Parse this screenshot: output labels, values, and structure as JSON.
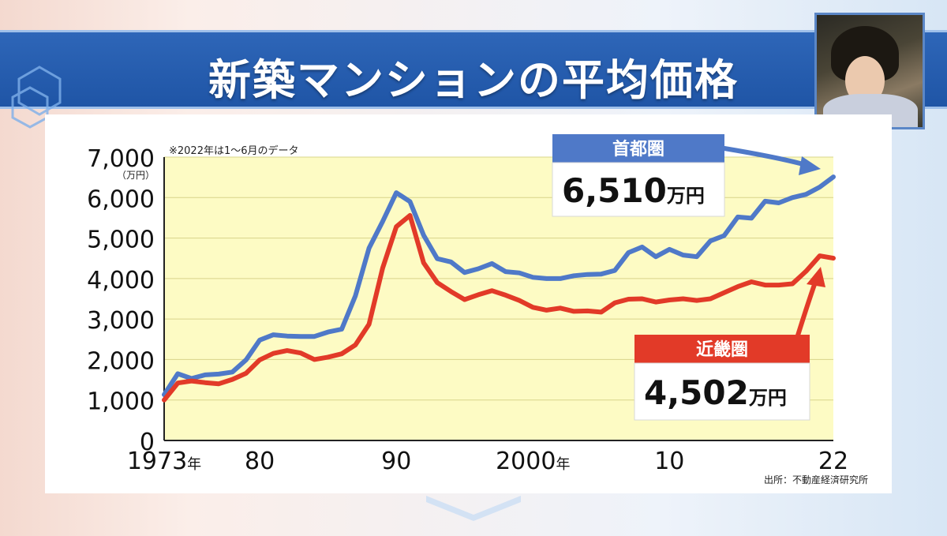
{
  "header": {
    "title": "新築マンションの平均価格"
  },
  "chart_data": {
    "type": "line",
    "note": "※2022年は1～6月のデータ",
    "unit_label": "（万円）",
    "source": "出所：不動産経済研究所",
    "ylim": [
      0,
      7000
    ],
    "xlim": [
      1973,
      2022
    ],
    "y_ticks": [
      {
        "v": 0,
        "label": "0"
      },
      {
        "v": 1000,
        "label": "1,000"
      },
      {
        "v": 2000,
        "label": "2,000"
      },
      {
        "v": 3000,
        "label": "3,000"
      },
      {
        "v": 4000,
        "label": "4,000"
      },
      {
        "v": 5000,
        "label": "5,000"
      },
      {
        "v": 6000,
        "label": "6,000"
      },
      {
        "v": 7000,
        "label": "7,000"
      }
    ],
    "x_ticks": [
      {
        "v": 1973,
        "label": "1973",
        "suffix": "年"
      },
      {
        "v": 1980,
        "label": "80",
        "suffix": ""
      },
      {
        "v": 1990,
        "label": "90",
        "suffix": ""
      },
      {
        "v": 2000,
        "label": "2000",
        "suffix": "年"
      },
      {
        "v": 2010,
        "label": "10",
        "suffix": ""
      },
      {
        "v": 2022,
        "label": "22",
        "suffix": ""
      }
    ],
    "x": [
      1973,
      1974,
      1975,
      1976,
      1977,
      1978,
      1979,
      1980,
      1981,
      1982,
      1983,
      1984,
      1985,
      1986,
      1987,
      1988,
      1989,
      1990,
      1991,
      1992,
      1993,
      1994,
      1995,
      1996,
      1997,
      1998,
      1999,
      2000,
      2001,
      2002,
      2003,
      2004,
      2005,
      2006,
      2007,
      2008,
      2009,
      2010,
      2011,
      2012,
      2013,
      2014,
      2015,
      2016,
      2017,
      2018,
      2019,
      2020,
      2021,
      2022
    ],
    "series": [
      {
        "name": "首都圏",
        "color": "#4f79c8",
        "values": [
          1130,
          1650,
          1530,
          1620,
          1640,
          1690,
          1990,
          2480,
          2610,
          2580,
          2570,
          2570,
          2680,
          2750,
          3570,
          4750,
          5410,
          6120,
          5900,
          5070,
          4490,
          4410,
          4150,
          4240,
          4370,
          4170,
          4140,
          4030,
          4000,
          4000,
          4070,
          4100,
          4110,
          4200,
          4640,
          4780,
          4540,
          4720,
          4580,
          4540,
          4930,
          5060,
          5520,
          5490,
          5910,
          5870,
          6000,
          6080,
          6260,
          6510
        ]
      },
      {
        "name": "近畿圏",
        "color": "#e23a28",
        "values": [
          1000,
          1420,
          1470,
          1430,
          1400,
          1510,
          1660,
          1990,
          2150,
          2220,
          2160,
          2000,
          2060,
          2140,
          2360,
          2870,
          4260,
          5280,
          5560,
          4390,
          3900,
          3680,
          3480,
          3600,
          3700,
          3590,
          3460,
          3290,
          3220,
          3270,
          3190,
          3200,
          3170,
          3400,
          3490,
          3500,
          3420,
          3470,
          3500,
          3460,
          3500,
          3650,
          3800,
          3920,
          3840,
          3840,
          3870,
          4180,
          4560,
          4502
        ]
      }
    ],
    "callouts": [
      {
        "label": "首都圏",
        "value": "6,510",
        "unit": "万円"
      },
      {
        "label": "近畿圏",
        "value": "4,502",
        "unit": "万円"
      }
    ]
  }
}
